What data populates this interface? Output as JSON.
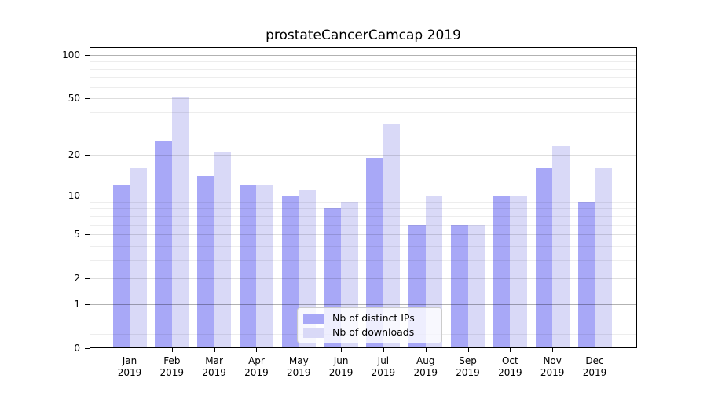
{
  "title": "prostateCancerCamcap 2019",
  "chart_data": {
    "type": "bar",
    "title": "prostateCancerCamcap 2019",
    "categories": [
      "Jan 2019",
      "Feb 2019",
      "Mar 2019",
      "Apr 2019",
      "May 2019",
      "Jun 2019",
      "Jul 2019",
      "Aug 2019",
      "Sep 2019",
      "Oct 2019",
      "Nov 2019",
      "Dec 2019"
    ],
    "x_tick_months": [
      "Jan",
      "Feb",
      "Mar",
      "Apr",
      "May",
      "Jun",
      "Jul",
      "Aug",
      "Sep",
      "Oct",
      "Nov",
      "Dec"
    ],
    "x_tick_year": "2019",
    "series": [
      {
        "name": "Nb of distinct IPs",
        "color": "#a8a8f7",
        "values": [
          12,
          25,
          14,
          12,
          10,
          8,
          19,
          6,
          6,
          10,
          16,
          9
        ]
      },
      {
        "name": "Nb of downloads",
        "color": "#d9d9f7",
        "values": [
          16,
          51,
          21,
          12,
          11,
          9,
          33,
          10,
          6,
          10,
          23,
          16
        ]
      }
    ],
    "y_axis": {
      "scale": "symlog ln(1+v)",
      "tick_labels": [
        "0",
        "1",
        "2",
        "5",
        "10",
        "20",
        "50",
        "100"
      ],
      "tick_values": [
        0,
        1,
        2,
        5,
        10,
        20,
        50,
        100
      ],
      "strong_grid_values": [
        1,
        10,
        100
      ],
      "soft_grid_values": [
        2,
        5,
        20,
        50
      ],
      "minor_grid_values": [
        0.25,
        3,
        4,
        6,
        7,
        8,
        9,
        30,
        40,
        60,
        70,
        80,
        90
      ],
      "ylim": [
        0,
        112
      ]
    },
    "legend_position": "lower center",
    "grid": true
  }
}
